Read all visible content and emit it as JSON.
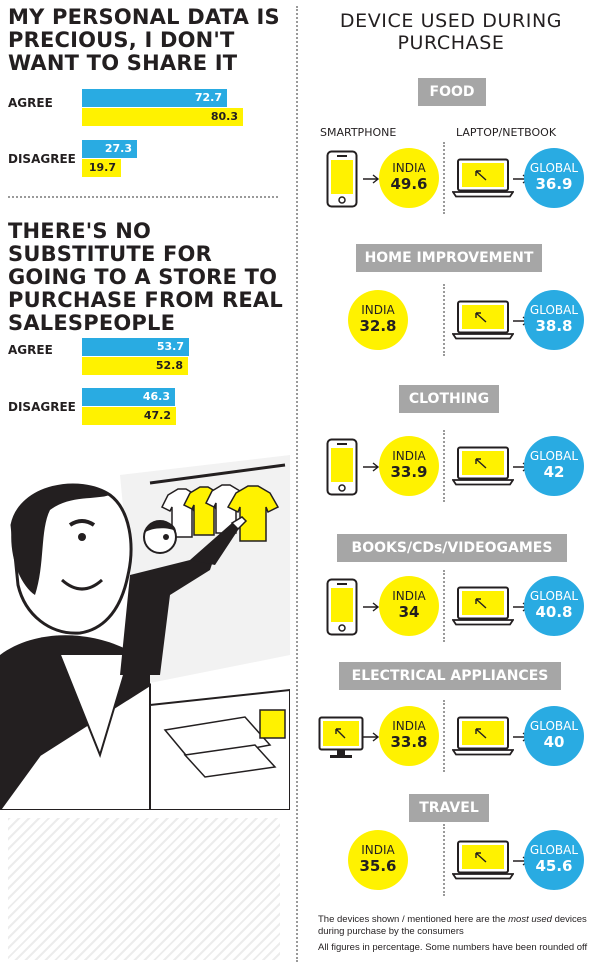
{
  "colors": {
    "blue": "#29abe2",
    "yellow": "#fff200",
    "tag_gray": "#a6a6a6",
    "text": "#231f20"
  },
  "left": {
    "q1_title": "MY PERSONAL DATA IS PRECIOUS, I DON'T WANT TO SHARE IT",
    "q2_title": "THERE'S NO SUBSTITUTE FOR GOING TO A STORE TO PURCHASE FROM REAL SALESPEOPLE",
    "agree_label": "AGREE",
    "disagree_label": "DISAGREE"
  },
  "right": {
    "title": "DEVICE USED DURING PURCHASE",
    "smartphone_label": "SMARTPHONE",
    "laptop_label": "LAPTOP/NETBOOK",
    "india_label": "INDIA",
    "global_label": "GLOBAL",
    "note_1_pre": "The devices shown / mentioned here are the ",
    "note_1_em": "most used",
    "note_1_post": " devices during purchase by the consumers",
    "note_2": "All figures in percentage. Some numbers have been rounded off"
  },
  "chart_data": [
    {
      "type": "bar",
      "title": "MY PERSONAL DATA IS PRECIOUS, I DON'T WANT TO SHARE IT",
      "categories": [
        "AGREE",
        "DISAGREE"
      ],
      "series": [
        {
          "color": "#29abe2",
          "values": [
            72.7,
            27.3
          ]
        },
        {
          "color": "#fff200",
          "values": [
            80.3,
            19.7
          ]
        }
      ]
    },
    {
      "type": "bar",
      "title": "THERE'S NO SUBSTITUTE FOR GOING TO A STORE TO PURCHASE FROM REAL SALESPEOPLE",
      "categories": [
        "AGREE",
        "DISAGREE"
      ],
      "series": [
        {
          "color": "#29abe2",
          "values": [
            53.7,
            46.3
          ]
        },
        {
          "color": "#fff200",
          "values": [
            52.8,
            47.2
          ]
        }
      ]
    },
    {
      "type": "table",
      "title": "DEVICE USED DURING PURCHASE",
      "rows": [
        {
          "category": "FOOD",
          "india": 49.6,
          "india_device": "smartphone",
          "global": 36.9,
          "global_device": "laptop"
        },
        {
          "category": "HOME IMPROVEMENT",
          "india": 32.8,
          "india_device": "none",
          "global": 38.8,
          "global_device": "laptop"
        },
        {
          "category": "CLOTHING",
          "india": 33.9,
          "india_device": "smartphone",
          "global": 42,
          "global_device": "laptop"
        },
        {
          "category": "BOOKS/CDs/VIDEOGAMES",
          "india": 34,
          "india_device": "smartphone",
          "global": 40.8,
          "global_device": "laptop"
        },
        {
          "category": "ELECTRICAL APPLIANCES",
          "india": 33.8,
          "india_device": "desktop",
          "global": 40,
          "global_device": "laptop"
        },
        {
          "category": "TRAVEL",
          "india": 35.6,
          "india_device": "none",
          "global": 45.6,
          "global_device": "laptop"
        }
      ]
    }
  ]
}
